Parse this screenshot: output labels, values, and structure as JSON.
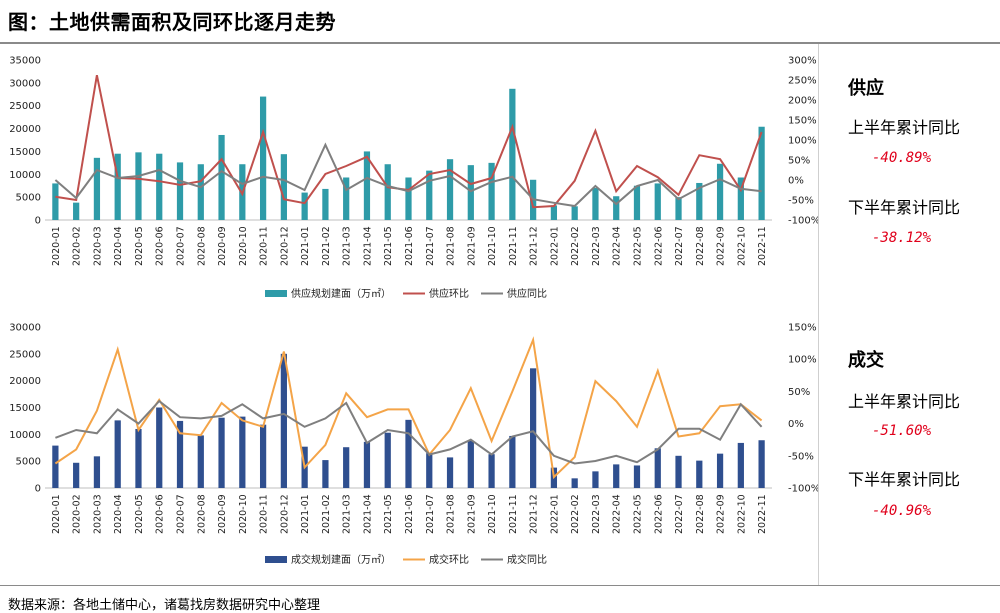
{
  "page": {
    "title": "图：土地供需面积及同环比逐月走势",
    "source": "数据来源：各地土储中心，诸葛找房数据研究中心整理"
  },
  "side": {
    "supply": {
      "heading": "供应",
      "h1_label": "上半年累计同比",
      "h1_value": "-40.89%",
      "h2_label": "下半年累计同比",
      "h2_value": "-38.12%"
    },
    "deal": {
      "heading": "成交",
      "h1_label": "上半年累计同比",
      "h1_value": "-51.60%",
      "h2_label": "下半年累计同比",
      "h2_value": "-40.96%"
    }
  },
  "colors": {
    "supply_bar": "#2e9ba8",
    "supply_mom": "#c0504d",
    "yoy": "#7f7f7f",
    "deal_bar": "#2f4f8f",
    "deal_mom": "#f4a448",
    "accent_red": "#e0001b"
  },
  "chart_data": [
    {
      "type": "bar",
      "categories": [
        "2020-01",
        "2020-02",
        "2020-03",
        "2020-04",
        "2020-05",
        "2020-06",
        "2020-07",
        "2020-08",
        "2020-09",
        "2020-10",
        "2020-11",
        "2020-12",
        "2021-01",
        "2021-02",
        "2021-03",
        "2021-04",
        "2021-05",
        "2021-06",
        "2021-07",
        "2021-08",
        "2021-09",
        "2021-10",
        "2021-11",
        "2021-12",
        "2022-01",
        "2022-02",
        "2022-03",
        "2022-04",
        "2022-05",
        "2022-06",
        "2022-07",
        "2022-08",
        "2022-09",
        "2022-10",
        "2022-11"
      ],
      "y_ticks_left": [
        "0",
        "5000",
        "10000",
        "15000",
        "20000",
        "25000",
        "30000",
        "35000"
      ],
      "y_ticks_right": [
        "-100%",
        "-50%",
        "0%",
        "50%",
        "100%",
        "150%",
        "200%",
        "250%",
        "300%"
      ],
      "ylim_left": [
        0,
        35000
      ],
      "ylim_right": [
        -100,
        300
      ],
      "legend": [
        "供应规划建面（万㎡）",
        "供应环比",
        "供应同比"
      ],
      "legend_position": "bottom",
      "series": [
        {
          "name": "供应规划建面（万㎡）",
          "kind": "bar",
          "axis": "left",
          "values": [
            8000,
            3800,
            13600,
            14500,
            14800,
            14500,
            12600,
            12200,
            18600,
            12200,
            27000,
            14400,
            6000,
            6800,
            9300,
            15000,
            12200,
            9300,
            10800,
            13300,
            12000,
            12500,
            28700,
            8800,
            3200,
            3000,
            7000,
            5200,
            7500,
            8000,
            5000,
            8100,
            12300,
            9300,
            20400
          ]
        },
        {
          "name": "供应环比",
          "kind": "line",
          "axis": "right",
          "values": [
            -42,
            -50,
            262,
            5,
            3,
            -3,
            -12,
            -3,
            52,
            -35,
            120,
            -48,
            -58,
            15,
            35,
            58,
            -18,
            -25,
            15,
            25,
            -10,
            5,
            133,
            -68,
            -65,
            -2,
            123,
            -28,
            35,
            7,
            -37,
            62,
            52,
            -25,
            120
          ]
        },
        {
          "name": "供应同比",
          "kind": "line",
          "axis": "right",
          "values": [
            0,
            -45,
            25,
            5,
            10,
            25,
            -2,
            -18,
            22,
            -10,
            8,
            0,
            -25,
            88,
            -25,
            5,
            -15,
            -28,
            -2,
            10,
            -28,
            -5,
            8,
            -48,
            -57,
            -65,
            -15,
            -60,
            -15,
            0,
            -48,
            -20,
            2,
            -22,
            -28
          ]
        }
      ]
    },
    {
      "type": "bar",
      "categories": [
        "2020-01",
        "2020-02",
        "2020-03",
        "2020-04",
        "2020-05",
        "2020-06",
        "2020-07",
        "2020-08",
        "2020-09",
        "2020-10",
        "2020-11",
        "2020-12",
        "2021-01",
        "2021-02",
        "2021-03",
        "2021-04",
        "2021-05",
        "2021-06",
        "2021-07",
        "2021-08",
        "2021-09",
        "2021-10",
        "2021-11",
        "2021-12",
        "2022-01",
        "2022-02",
        "2022-03",
        "2022-04",
        "2022-05",
        "2022-06",
        "2022-07",
        "2022-08",
        "2022-09",
        "2022-10",
        "2022-11"
      ],
      "y_ticks_left": [
        "0",
        "5000",
        "10000",
        "15000",
        "20000",
        "25000",
        "30000"
      ],
      "y_ticks_right": [
        "-100%",
        "-50%",
        "0%",
        "50%",
        "100%",
        "150%"
      ],
      "ylim_left": [
        0,
        30000
      ],
      "ylim_right": [
        -100,
        150
      ],
      "legend": [
        "成交规划建面（万㎡）",
        "成交环比",
        "成交同比"
      ],
      "legend_position": "bottom",
      "series": [
        {
          "name": "成交规划建面（万㎡）",
          "kind": "bar",
          "axis": "left",
          "values": [
            7900,
            4700,
            5900,
            12600,
            11000,
            15000,
            12500,
            9800,
            13100,
            13300,
            11800,
            25000,
            7700,
            5200,
            7600,
            8600,
            10300,
            12700,
            6500,
            5700,
            8800,
            6300,
            9700,
            22300,
            3800,
            1800,
            3100,
            4400,
            4200,
            7400,
            6000,
            5100,
            6400,
            8400,
            8900
          ]
        },
        {
          "name": "成交环比",
          "kind": "line",
          "axis": "right",
          "values": [
            -62,
            -40,
            20,
            115,
            -10,
            37,
            -15,
            -18,
            32,
            5,
            -5,
            112,
            -68,
            -33,
            47,
            10,
            22,
            22,
            -48,
            -10,
            55,
            -27,
            50,
            130,
            -83,
            -52,
            66,
            35,
            -5,
            82,
            -20,
            -15,
            27,
            30,
            5
          ]
        },
        {
          "name": "成交同比",
          "kind": "line",
          "axis": "right",
          "values": [
            -22,
            -10,
            -15,
            22,
            0,
            35,
            10,
            8,
            12,
            30,
            8,
            15,
            -5,
            8,
            32,
            -30,
            -10,
            -15,
            -48,
            -40,
            -25,
            -48,
            -20,
            -12,
            -50,
            -62,
            -58,
            -50,
            -60,
            -40,
            -8,
            -8,
            -25,
            30,
            -5
          ]
        }
      ]
    }
  ]
}
